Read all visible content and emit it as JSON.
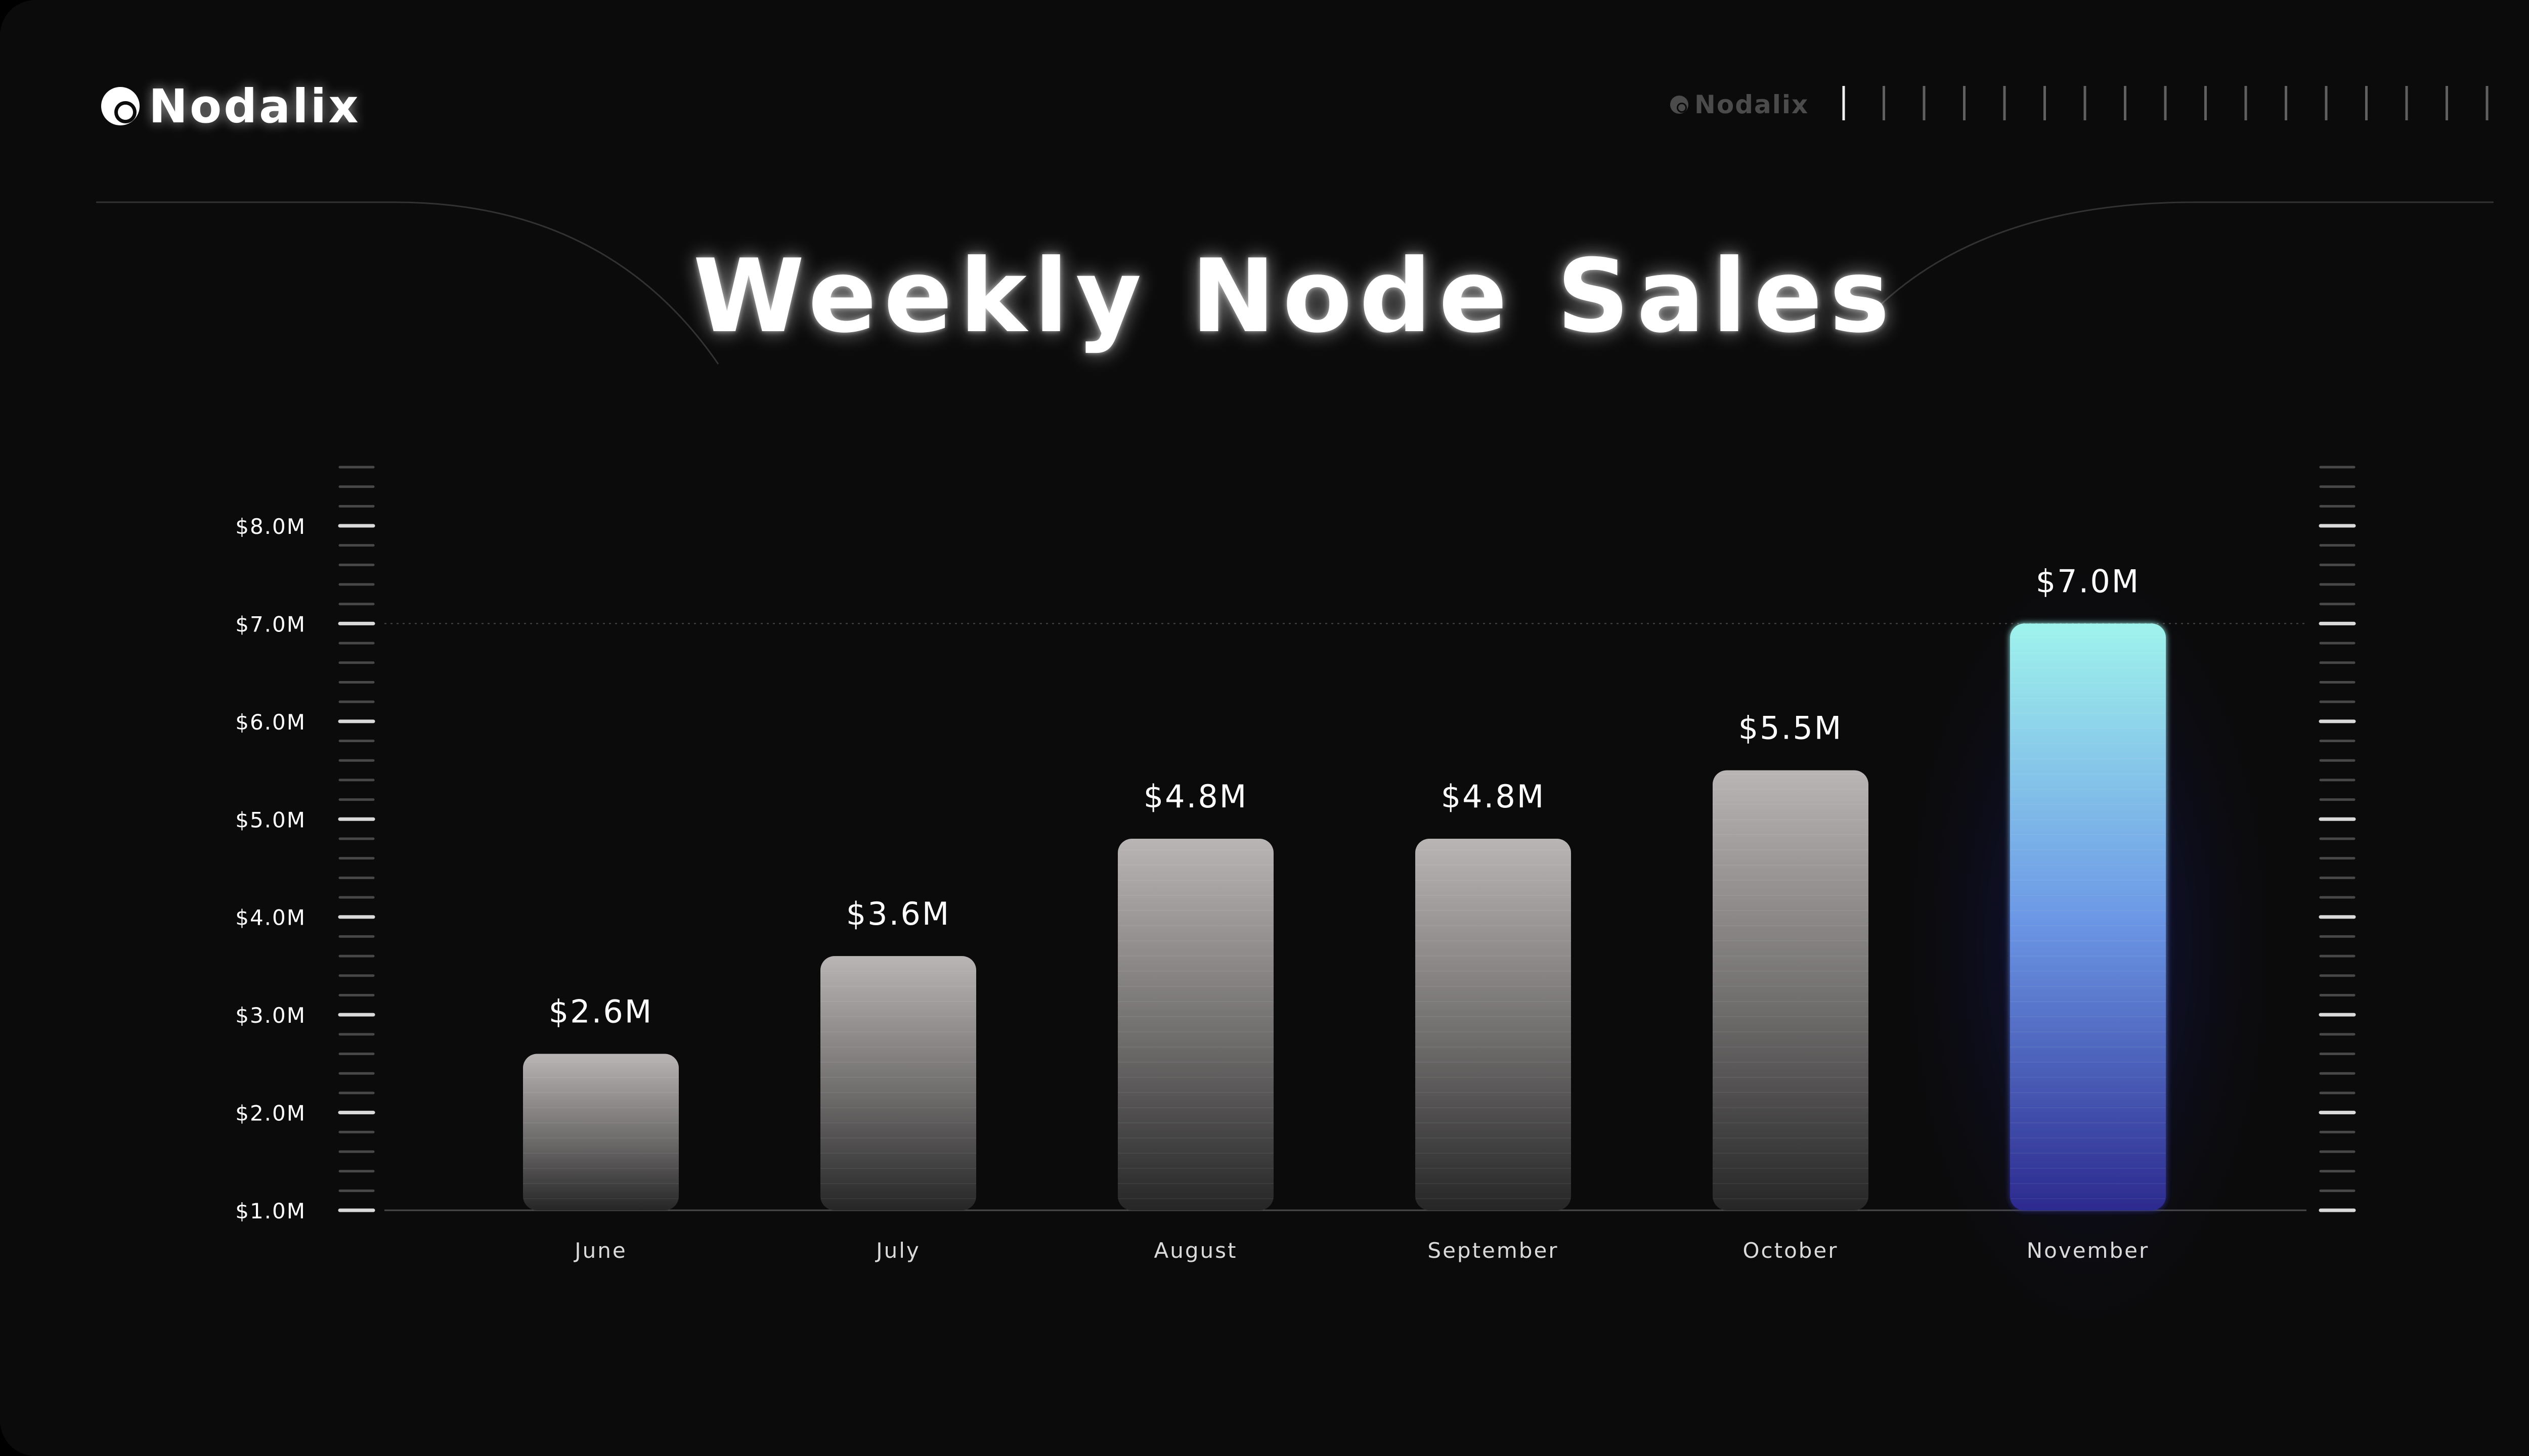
{
  "header": {
    "logo_text": "Nodalix",
    "small_logo_text": "Nodalix"
  },
  "chart_data": {
    "type": "bar",
    "title": "Weekly Node Sales",
    "categories": [
      "June",
      "July",
      "August",
      "September",
      "October",
      "November"
    ],
    "values": [
      2.6,
      3.6,
      4.8,
      4.8,
      5.5,
      7.0
    ],
    "data_labels": [
      "$2.6M",
      "$3.6M",
      "$4.8M",
      "$4.8M",
      "$5.5M",
      "$7.0M"
    ],
    "yticks": [
      1,
      2,
      3,
      4,
      5,
      6,
      7,
      8
    ],
    "ytick_labels": [
      "$1.0M",
      "$2.0M",
      "$3.0M",
      "$4.0M",
      "$5.0M",
      "$6.0M",
      "$7.0M",
      "$8.0M"
    ],
    "ylim": [
      1,
      8
    ],
    "highlight_index": 5,
    "reference_line": 7.0,
    "grid": false,
    "legend": "none",
    "colors": {
      "bar_top": "#bab5b5",
      "bar_bottom": "#262626",
      "highlight_top": "#9ff3ec",
      "highlight_mid": "#6c98e6",
      "highlight_bottom": "#2c2a8e",
      "background": "#0b0b0b",
      "text": "#ffffff"
    }
  }
}
